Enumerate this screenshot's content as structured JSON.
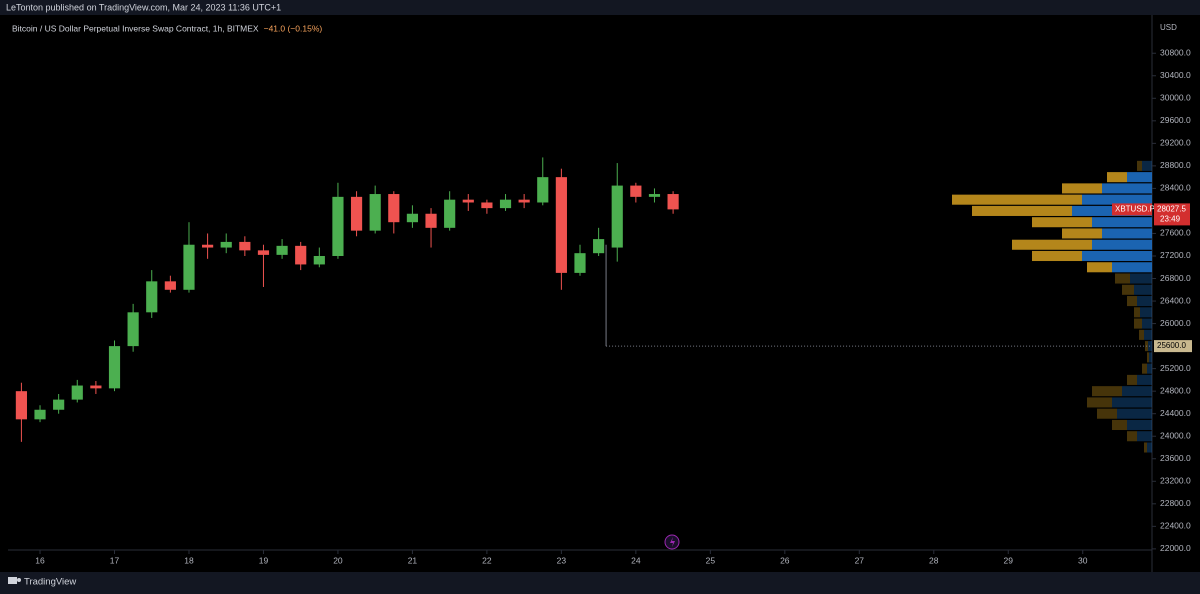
{
  "header": {
    "publisher": "LeTonton published on TradingView.com, Mar 24, 2023 11:36 UTC+1",
    "footer": "TradingView"
  },
  "chart_data": {
    "type": "candlestick",
    "title": "Bitcoin / US Dollar Perpetual Inverse Swap Contract, 1h, BITMEX",
    "change": "−41.0 (−0.15%)",
    "y_axis_label": "USD",
    "up_color": "#4caf50",
    "down_color": "#ef5350",
    "x": [
      15.75,
      16,
      16.25,
      16.5,
      16.75,
      17,
      17.25,
      17.5,
      17.75,
      18,
      18.25,
      18.5,
      18.75,
      19,
      19.25,
      19.5,
      19.75,
      20,
      20.25,
      20.5,
      20.75,
      21,
      21.25,
      21.5,
      21.75,
      22,
      22.25,
      22.5,
      22.75,
      23,
      23.25,
      23.5,
      23.75,
      24,
      24.25,
      24.5
    ],
    "open": [
      24800,
      24300,
      24470,
      24650,
      24900,
      24850,
      25600,
      26200,
      26750,
      26600,
      27400,
      27350,
      27450,
      27300,
      27220,
      27380,
      27050,
      27200,
      28250,
      27650,
      28300,
      27800,
      27950,
      27700,
      28200,
      28150,
      28050,
      28200,
      28150,
      28600,
      26900,
      27250,
      27350,
      28450,
      28250,
      28300
    ],
    "high": [
      24950,
      24550,
      24750,
      25000,
      24980,
      25700,
      26350,
      26950,
      26850,
      27800,
      27600,
      27600,
      27550,
      27400,
      27500,
      27450,
      27350,
      28500,
      28350,
      28450,
      28350,
      28100,
      28050,
      28350,
      28300,
      28200,
      28300,
      28300,
      28950,
      28750,
      27400,
      27700,
      28850,
      28500,
      28400,
      28350
    ],
    "low": [
      23900,
      24250,
      24400,
      24600,
      24750,
      24800,
      25500,
      26100,
      26550,
      26550,
      27150,
      27250,
      27200,
      26650,
      27150,
      26950,
      27000,
      27150,
      27550,
      27600,
      27600,
      27700,
      27350,
      27650,
      28000,
      27950,
      28000,
      28050,
      28100,
      26600,
      26850,
      27200,
      27100,
      28150,
      28150,
      27950
    ],
    "close": [
      24300,
      24470,
      24650,
      24900,
      24850,
      25600,
      26200,
      26750,
      26600,
      27400,
      27350,
      27450,
      27300,
      27220,
      27380,
      27050,
      27200,
      28250,
      27650,
      28300,
      27800,
      27950,
      27700,
      28200,
      28150,
      28050,
      28200,
      28150,
      28600,
      26900,
      27250,
      27500,
      28450,
      28250,
      28300,
      28027.5
    ],
    "xlim": [
      15.57,
      30.93
    ],
    "xticks": [
      16,
      17,
      18,
      19,
      20,
      21,
      22,
      23,
      24,
      25,
      26,
      27,
      28,
      29,
      30
    ],
    "ylim": [
      21980,
      31390
    ],
    "yticks": [
      {
        "value": 22000,
        "label": "22000.0"
      },
      {
        "value": 22400,
        "label": "22400.0"
      },
      {
        "value": 22800,
        "label": "22800.0"
      },
      {
        "value": 23200,
        "label": "23200.0"
      },
      {
        "value": 23600,
        "label": "23600.0"
      },
      {
        "value": 24000,
        "label": "24000.0"
      },
      {
        "value": 24400,
        "label": "24400.0"
      },
      {
        "value": 24800,
        "label": "24800.0"
      },
      {
        "value": 25200,
        "label": "25200.0"
      },
      {
        "value": 26000,
        "label": "26000.0"
      },
      {
        "value": 26400,
        "label": "26400.0"
      },
      {
        "value": 26800,
        "label": "26800.0"
      },
      {
        "value": 27200,
        "label": "27200.0"
      },
      {
        "value": 27600,
        "label": "27600.0"
      },
      {
        "value": 28400,
        "label": "28400.0"
      },
      {
        "value": 28800,
        "label": "28800.0"
      },
      {
        "value": 29200,
        "label": "29200.0"
      },
      {
        "value": 29600,
        "label": "29600.0"
      },
      {
        "value": 30000,
        "label": "30000.0"
      },
      {
        "value": 30400,
        "label": "30400.0"
      },
      {
        "value": 30800,
        "label": "30800.0"
      }
    ],
    "last_price": {
      "value": 28027.5,
      "symbol": "XBTUSD.P",
      "countdown": "23:49",
      "color": "#d32f2f"
    },
    "hline": {
      "value": 25600,
      "label": "25600.0",
      "x_start": 23.6,
      "y_start": 27400
    },
    "volume_profile": {
      "prices": [
        23800,
        24000,
        24200,
        24400,
        24600,
        24800,
        25000,
        25200,
        25400,
        25600,
        25800,
        26000,
        26200,
        26400,
        26600,
        26800,
        27000,
        27200,
        27400,
        27600,
        27800,
        28000,
        28200,
        28400,
        28600,
        28800
      ],
      "buy": [
        5,
        15,
        25,
        35,
        40,
        30,
        15,
        5,
        3,
        4,
        8,
        10,
        12,
        15,
        18,
        22,
        40,
        70,
        60,
        50,
        60,
        80,
        70,
        50,
        25,
        10
      ],
      "sell": [
        3,
        10,
        15,
        20,
        25,
        30,
        10,
        5,
        2,
        3,
        5,
        8,
        6,
        10,
        12,
        15,
        25,
        50,
        80,
        40,
        60,
        100,
        130,
        40,
        20,
        5
      ],
      "value_area": [
        26900,
        28700
      ],
      "buy_color": "#1e6fc4",
      "sell_color": "#c8951e",
      "xlim": [
        0,
        250
      ]
    }
  }
}
